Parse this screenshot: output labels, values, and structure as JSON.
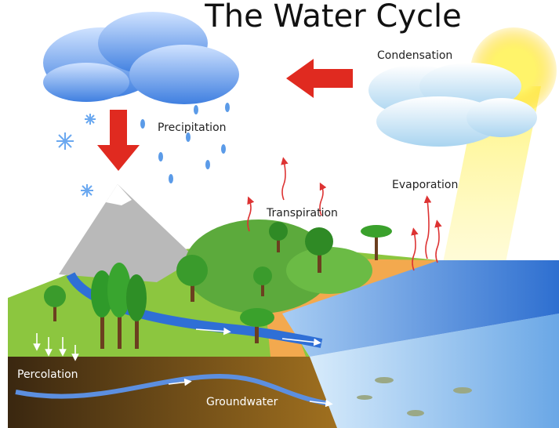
{
  "title": "The Water Cycle",
  "labels": {
    "condensation": "Condensation",
    "precipitation": "Precipitation",
    "evaporation": "Evaporation",
    "transpiration": "Transpiration",
    "percolation": "Percolation",
    "groundwater": "Groundwater"
  }
}
